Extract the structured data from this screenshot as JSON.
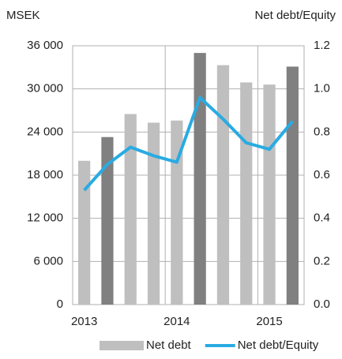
{
  "chart_data": {
    "type": "bar_line",
    "y_label": "MSEK",
    "y2_label": "Net debt/Equity",
    "categories": [
      "2013",
      null,
      null,
      null,
      "2014",
      null,
      null,
      null,
      "2015",
      null
    ],
    "series": [
      {
        "name": "Net debt",
        "type": "bar",
        "color": "#bfbfbf",
        "colors": [
          "#bfbfbf",
          "#808080",
          "#bfbfbf",
          "#bfbfbf",
          "#bfbfbf",
          "#808080",
          "#bfbfbf",
          "#bfbfbf",
          "#bfbfbf",
          "#808080"
        ],
        "values": [
          20000,
          23300,
          26500,
          25300,
          25600,
          35000,
          33300,
          30900,
          30600,
          33100
        ]
      },
      {
        "name": "Net debt/Equity",
        "type": "line",
        "axis": "y2",
        "color": "#29abe2",
        "values": [
          0.53,
          0.65,
          0.73,
          0.69,
          0.66,
          0.96,
          0.86,
          0.75,
          0.72,
          0.85
        ]
      }
    ],
    "ylim": [
      0,
      36000
    ],
    "yticks": [
      0,
      {
        "value": 6000,
        "label": "6 000"
      },
      {
        "value": 12000,
        "label": "12 000"
      },
      {
        "value": 18000,
        "label": "18 000"
      },
      {
        "value": 24000,
        "label": "24 000"
      },
      {
        "value": 30000,
        "label": "30 000"
      },
      {
        "value": 36000,
        "label": "36 000"
      }
    ],
    "y2lim": [
      0,
      1.2
    ],
    "y2ticks": [
      {
        "value": 0,
        "label": "0.0"
      },
      0.2,
      0.4,
      0.6,
      0.8,
      {
        "value": 1,
        "label": "1.0"
      },
      1.2
    ],
    "legend": "bottom"
  }
}
